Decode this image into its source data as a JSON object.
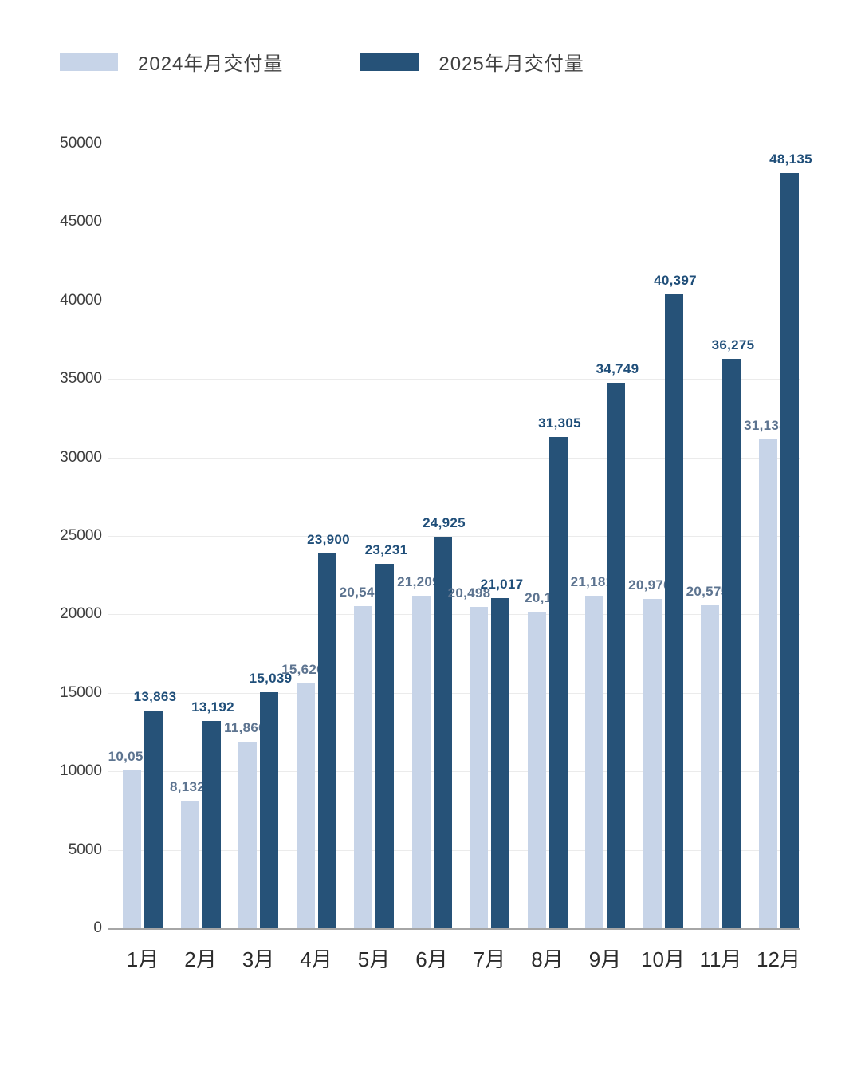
{
  "colors": {
    "series_2024": "#c7d4e8",
    "series_2025": "#265278",
    "value_label_2024": "#5d7490",
    "value_label_2025": "#1f4e79",
    "gridline": "#ebebeb",
    "axis_line": "#a6a6a6",
    "tick_text": "#3d3d3d",
    "background": "#ffffff"
  },
  "legend": {
    "items": [
      {
        "label": "2024年月交付量",
        "color": "#c7d4e8"
      },
      {
        "label": "2025年月交付量",
        "color": "#265278"
      }
    ]
  },
  "chart_data": {
    "type": "bar",
    "title": "",
    "xlabel": "",
    "ylabel": "",
    "categories": [
      "1月",
      "2月",
      "3月",
      "4月",
      "5月",
      "6月",
      "7月",
      "8月",
      "9月",
      "10月",
      "11月",
      "12月"
    ],
    "series": [
      {
        "name": "2024年月交付量",
        "color": "#c7d4e8",
        "values": [
          10055,
          8132,
          11866,
          15620,
          20544,
          21209,
          20498,
          20176,
          21181,
          20976,
          20575,
          31138
        ],
        "value_labels": [
          "10,055",
          "8,132",
          "11,866",
          "15,620",
          "20,544",
          "21,209",
          "20,498",
          "20,176",
          "21,181",
          "20,976",
          "20,575",
          "31,138"
        ]
      },
      {
        "name": "2025年月交付量",
        "color": "#265278",
        "values": [
          13863,
          13192,
          15039,
          23900,
          23231,
          24925,
          21017,
          31305,
          34749,
          40397,
          36275,
          48135
        ],
        "value_labels": [
          "13,863",
          "13,192",
          "15,039",
          "23,900",
          "23,231",
          "24,925",
          "21,017",
          "31,305",
          "34,749",
          "40,397",
          "36,275",
          "48,135"
        ]
      }
    ],
    "ylim": [
      0,
      50000
    ],
    "yticks": [
      0,
      5000,
      10000,
      15000,
      20000,
      25000,
      30000,
      35000,
      40000,
      45000,
      50000
    ],
    "grid": true,
    "legend_position": "top-left"
  }
}
